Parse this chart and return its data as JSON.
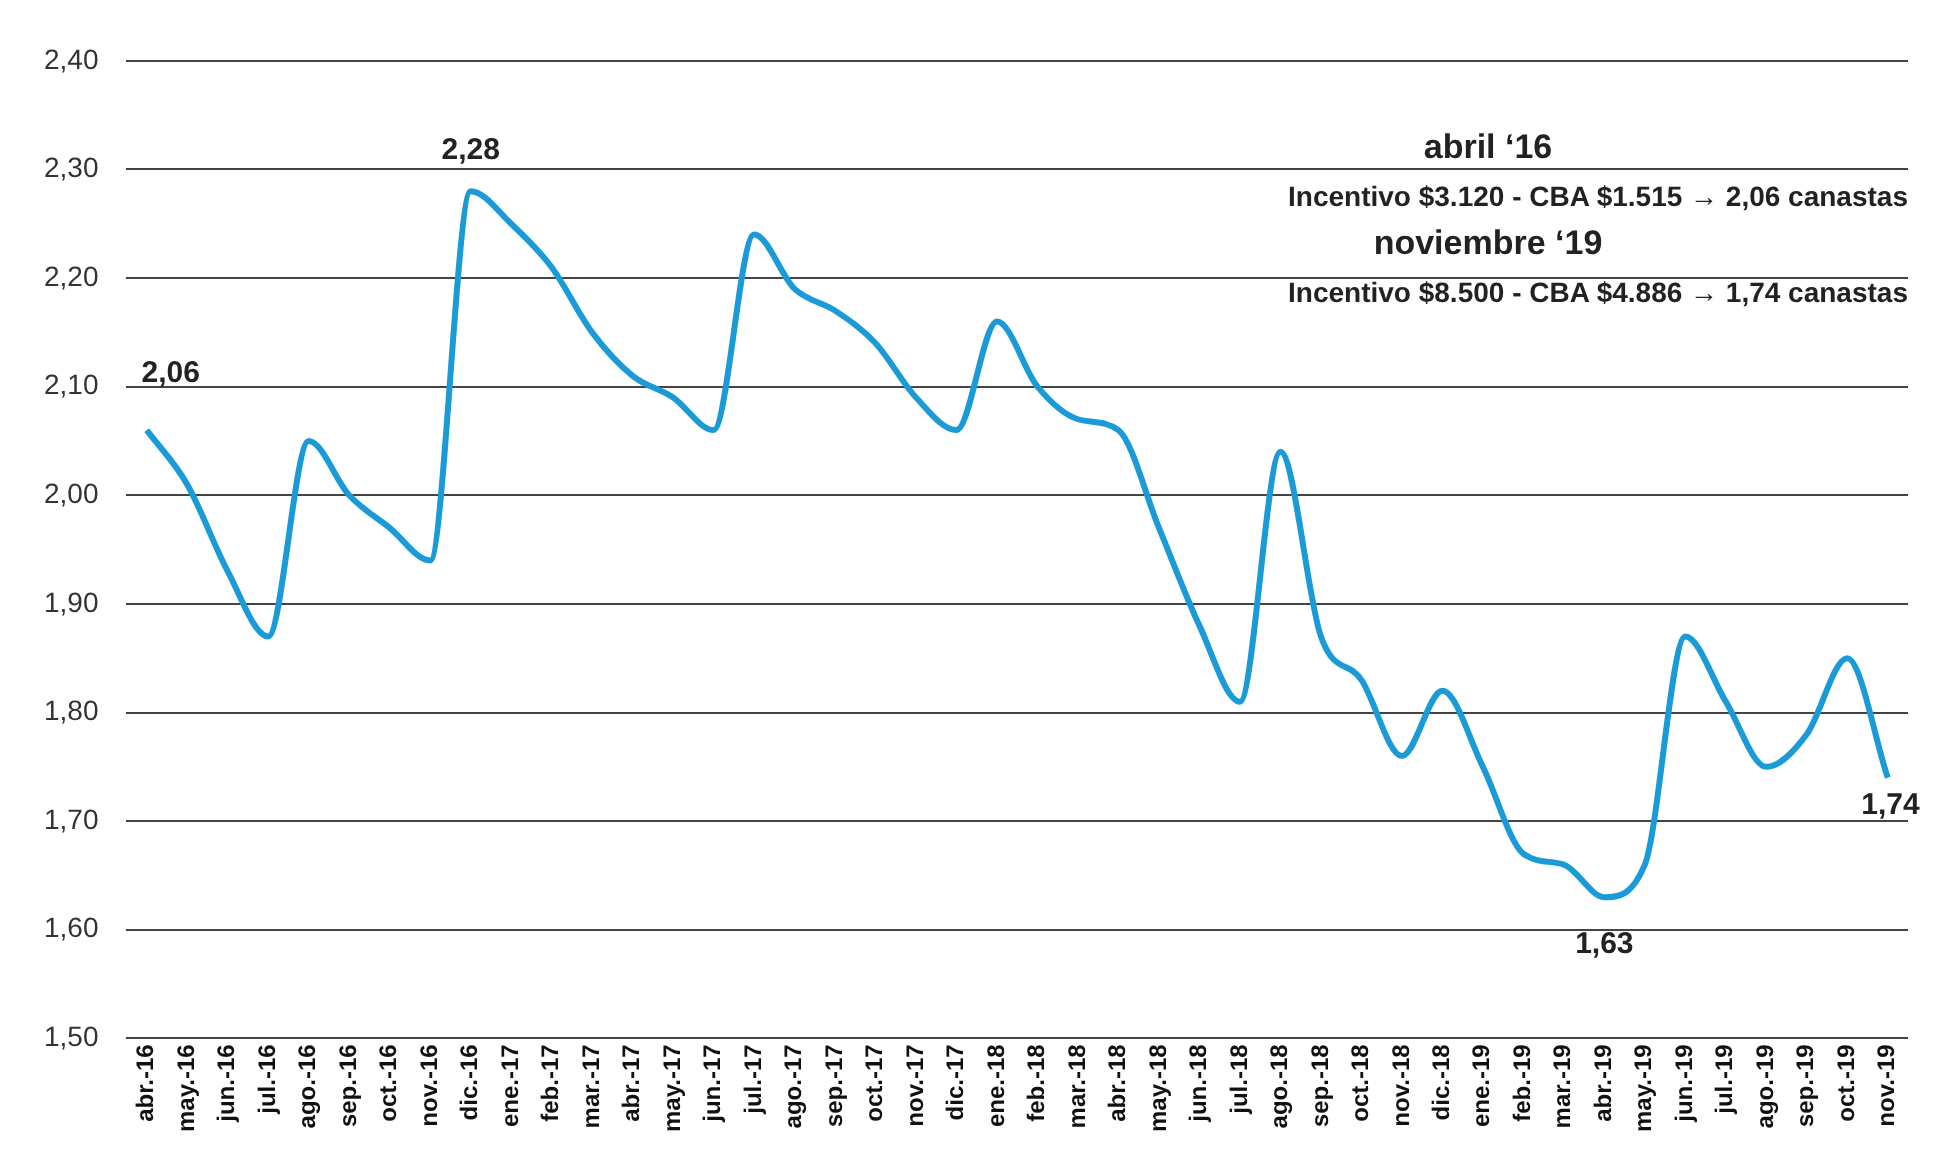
{
  "chart_data": {
    "type": "line",
    "categories": [
      "abr.-16",
      "may.-16",
      "jun.-16",
      "jul.-16",
      "ago.-16",
      "sep.-16",
      "oct.-16",
      "nov.-16",
      "dic.-16",
      "ene.-17",
      "feb.-17",
      "mar.-17",
      "abr.-17",
      "may.-17",
      "jun.-17",
      "jul.-17",
      "ago.-17",
      "sep.-17",
      "oct.-17",
      "nov.-17",
      "dic.-17",
      "ene.-18",
      "feb.-18",
      "mar.-18",
      "abr.-18",
      "may.-18",
      "jun.-18",
      "jul.-18",
      "ago.-18",
      "sep.-18",
      "oct.-18",
      "nov.-18",
      "dic.-18",
      "ene.-19",
      "feb.-19",
      "mar.-19",
      "abr.-19",
      "may.-19",
      "jun.-19",
      "jul.-19",
      "ago.-19",
      "sep.-19",
      "oct.-19",
      "nov.-19"
    ],
    "series": [
      {
        "color": "#1a9ad6",
        "values": [
          2.06,
          2.01,
          1.93,
          1.87,
          2.05,
          2.0,
          1.97,
          1.94,
          2.28,
          2.25,
          2.21,
          2.15,
          2.11,
          2.09,
          2.06,
          2.24,
          2.19,
          2.17,
          2.14,
          2.09,
          2.06,
          2.16,
          2.1,
          2.07,
          2.06,
          1.97,
          1.88,
          1.81,
          2.04,
          1.87,
          1.83,
          1.76,
          1.82,
          1.75,
          1.67,
          1.66,
          1.63,
          1.66,
          1.87,
          1.81,
          1.75,
          1.78,
          1.85,
          1.74
        ],
        "value_labels": [
          "2,06",
          null,
          null,
          null,
          null,
          null,
          null,
          null,
          "2,28",
          null,
          null,
          null,
          null,
          null,
          null,
          null,
          null,
          null,
          null,
          null,
          null,
          null,
          null,
          null,
          null,
          null,
          null,
          null,
          null,
          null,
          null,
          null,
          null,
          null,
          null,
          null,
          "1,63",
          null,
          null,
          null,
          null,
          null,
          null,
          "1,74"
        ]
      }
    ],
    "ylim": [
      1.5,
      2.4
    ],
    "yticks": [
      {
        "value": 1.5,
        "label": "1,50"
      },
      {
        "value": 1.6,
        "label": "1,60"
      },
      {
        "value": 1.7,
        "label": "1,70"
      },
      {
        "value": 1.8,
        "label": "1,80"
      },
      {
        "value": 1.9,
        "label": "1,90"
      },
      {
        "value": 2.0,
        "label": "2,00"
      },
      {
        "value": 2.1,
        "label": "2,10"
      },
      {
        "value": 2.2,
        "label": "2,20"
      },
      {
        "value": 2.3,
        "label": "2,30"
      },
      {
        "value": 2.4,
        "label": "2,40"
      }
    ],
    "grid": "y",
    "legend": false,
    "marker": "none",
    "line_style": "solid",
    "annotations": [
      "abril ‘16",
      "Incentivo $3.120 - CBA $1.515 → 2,06 canastas",
      "noviembre ‘19",
      "Incentivo $8.500 - CBA $4.886 → 1,74 canastas"
    ]
  }
}
